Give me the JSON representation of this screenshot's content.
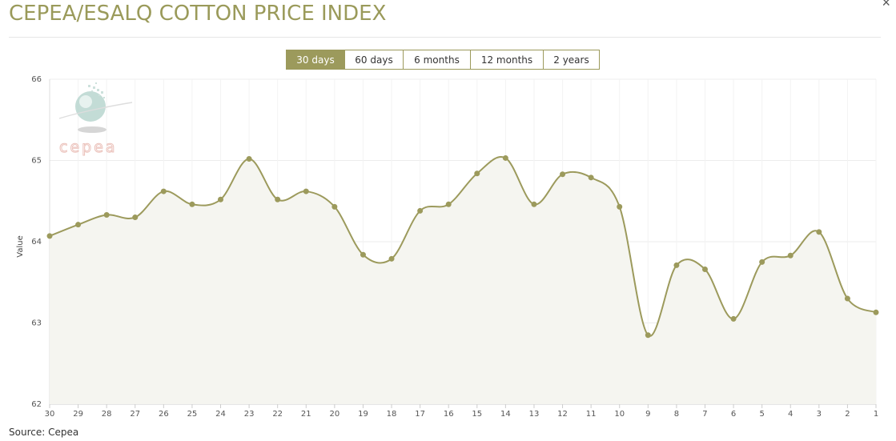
{
  "header": {
    "title": "CEPEA/ESALQ COTTON PRICE INDEX",
    "close_symbol": "×"
  },
  "range_buttons": [
    {
      "label": "30 days",
      "active": true
    },
    {
      "label": "60 days",
      "active": false
    },
    {
      "label": "6 months",
      "active": false
    },
    {
      "label": "12 months",
      "active": false
    },
    {
      "label": "2 years",
      "active": false
    }
  ],
  "logo": {
    "text": "cepea"
  },
  "footer": {
    "source": "Source: Cepea"
  },
  "colors": {
    "line": "#9c9a5c",
    "area": "#f5f5f0",
    "grid": "#ececec",
    "button_active": "#9c9a5c"
  },
  "chart_data": {
    "type": "area",
    "title": "",
    "xlabel": "",
    "ylabel": "Value",
    "ylim": [
      62,
      66
    ],
    "yticks": [
      62,
      63,
      64,
      65,
      66
    ],
    "grid": true,
    "categories": [
      "30",
      "29",
      "28",
      "27",
      "26",
      "25",
      "24",
      "23",
      "22",
      "21",
      "20",
      "19",
      "18",
      "17",
      "16",
      "15",
      "14",
      "13",
      "12",
      "11",
      "10",
      "9",
      "8",
      "7",
      "6",
      "5",
      "4",
      "3",
      "2",
      "1"
    ],
    "values": [
      64.07,
      64.21,
      64.33,
      64.3,
      64.62,
      64.46,
      64.52,
      65.02,
      64.52,
      64.62,
      64.43,
      63.84,
      63.79,
      64.38,
      64.46,
      64.84,
      65.03,
      64.46,
      64.83,
      64.79,
      64.43,
      62.85,
      63.71,
      63.66,
      63.05,
      63.75,
      63.83,
      64.12,
      63.3,
      63.13
    ]
  }
}
